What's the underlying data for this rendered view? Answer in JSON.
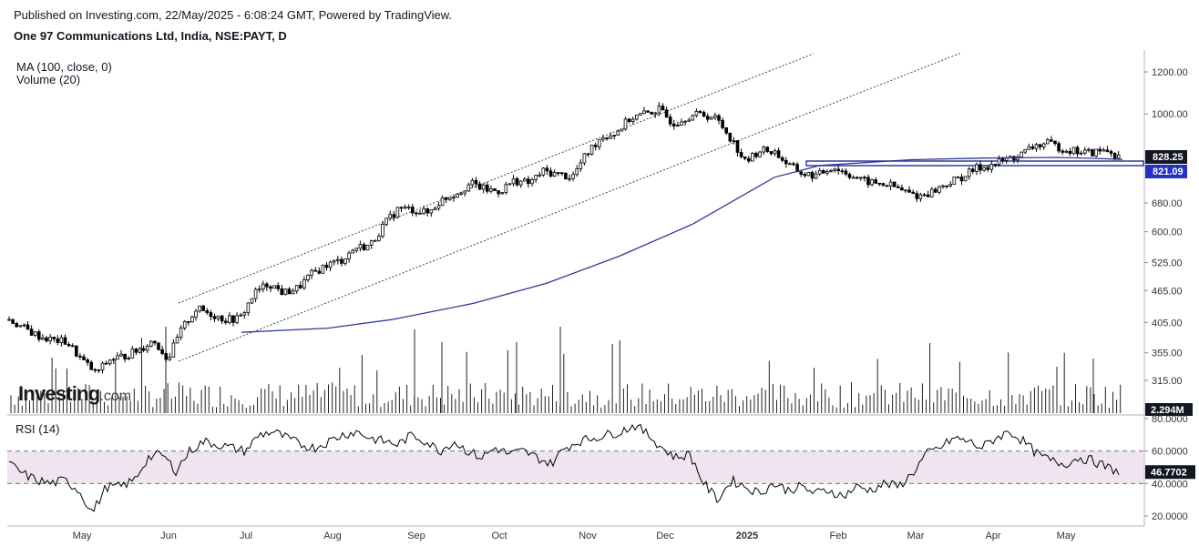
{
  "header": {
    "published": "Published on Investing.com, 22/May/2025 - 6:08:24 GMT, Powered by TradingView.",
    "title": "One 97 Communications Ltd, India, NSE:PAYT, D"
  },
  "indicators": {
    "ma_label": "MA (100, close, 0)",
    "volume_label": "Volume (20)",
    "rsi_label": "RSI (14)"
  },
  "logo": {
    "text": "Investing",
    "suffix": ".com"
  },
  "colors": {
    "candle": "#000000",
    "ma_line": "#2c3a9c",
    "channel": "#444444",
    "support_band": "#2c3a9c",
    "rsi_line": "#000000",
    "rsi_band": "#efe4f0",
    "last_price_badge": "#131722",
    "ma_badge": "#2431c4",
    "volume_badge": "#131722"
  },
  "chart_data": {
    "type": "candlestick",
    "symbol": "NSE:PAYT",
    "interval": "D",
    "price_axis": {
      "scale": "log",
      "ticks": [
        "1200.00",
        "1000.00",
        "828.25",
        "821.09",
        "680.00",
        "600.00",
        "525.00",
        "465.00",
        "405.00",
        "355.00",
        "315.00"
      ],
      "tick_values": [
        1200,
        1000,
        680,
        600,
        525,
        465,
        405,
        355,
        315
      ]
    },
    "time_axis": {
      "labels": [
        "May",
        "Jun",
        "Jul",
        "Aug",
        "Sep",
        "Oct",
        "Nov",
        "Dec",
        "2025",
        "Feb",
        "Mar",
        "Apr",
        "May"
      ],
      "bold": "2025"
    },
    "last_price": "828.25",
    "ma_value": "821.09",
    "volume_value": "2.294M",
    "rsi_value": "46.7702",
    "rsi_axis": {
      "ticks": [
        "80.0000",
        "60.0000",
        "40.0000",
        "20.0000"
      ],
      "values": [
        80,
        60,
        40,
        20
      ],
      "upper": 60,
      "lower": 40
    },
    "price_path": [
      [
        "May-2024",
        410
      ],
      [
        "May-2024",
        395
      ],
      [
        "May-2024",
        382
      ],
      [
        "May-2024",
        375
      ],
      [
        "May-2024",
        372
      ],
      [
        "May-2024",
        345
      ],
      [
        "May-2024",
        325
      ],
      [
        "May-2024",
        345
      ],
      [
        "Jun-2024",
        350
      ],
      [
        "Jun-2024",
        360
      ],
      [
        "Jun-2024",
        375
      ],
      [
        "Jun-2024",
        345
      ],
      [
        "Jun-2024",
        395
      ],
      [
        "Jun-2024",
        430
      ],
      [
        "Jul-2024",
        420
      ],
      [
        "Jul-2024",
        410
      ],
      [
        "Jul-2024",
        412
      ],
      [
        "Jul-2024",
        460
      ],
      [
        "Jul-2024",
        480
      ],
      [
        "Jul-2024",
        460
      ],
      [
        "Aug-2024",
        470
      ],
      [
        "Aug-2024",
        500
      ],
      [
        "Aug-2024",
        520
      ],
      [
        "Aug-2024",
        530
      ],
      [
        "Aug-2024",
        560
      ],
      [
        "Aug-2024",
        565
      ],
      [
        "Sep-2024",
        620
      ],
      [
        "Sep-2024",
        665
      ],
      [
        "Sep-2024",
        660
      ],
      [
        "Sep-2024",
        650
      ],
      [
        "Sep-2024",
        690
      ],
      [
        "Oct-2024",
        710
      ],
      [
        "Oct-2024",
        740
      ],
      [
        "Oct-2024",
        720
      ],
      [
        "Oct-2024",
        715
      ],
      [
        "Oct-2024",
        750
      ],
      [
        "Nov-2024",
        740
      ],
      [
        "Nov-2024",
        780
      ],
      [
        "Nov-2024",
        770
      ],
      [
        "Nov-2024",
        760
      ],
      [
        "Nov-2024",
        840
      ],
      [
        "Dec-2024",
        905
      ],
      [
        "Dec-2024",
        920
      ],
      [
        "Dec-2024",
        980
      ],
      [
        "Dec-2024",
        1000
      ],
      [
        "Dec-2024",
        1020
      ],
      [
        "Dec-2024",
        960
      ],
      [
        "Jan-2025",
        990
      ],
      [
        "Jan-2025",
        1000
      ],
      [
        "Jan-2025",
        980
      ],
      [
        "Jan-2025",
        900
      ],
      [
        "Jan-2025",
        810
      ],
      [
        "Jan-2025",
        855
      ],
      [
        "Jan-2025",
        850
      ],
      [
        "Jan-2025",
        800
      ],
      [
        "Feb-2025",
        770
      ],
      [
        "Feb-2025",
        765
      ],
      [
        "Feb-2025",
        795
      ],
      [
        "Feb-2025",
        775
      ],
      [
        "Feb-2025",
        750
      ],
      [
        "Feb-2025",
        740
      ],
      [
        "Mar-2025",
        735
      ],
      [
        "Mar-2025",
        715
      ],
      [
        "Mar-2025",
        700
      ],
      [
        "Mar-2025",
        715
      ],
      [
        "Mar-2025",
        740
      ],
      [
        "Mar-2025",
        760
      ],
      [
        "Apr-2025",
        790
      ],
      [
        "Apr-2025",
        800
      ],
      [
        "Apr-2025",
        820
      ],
      [
        "Apr-2025",
        835
      ],
      [
        "Apr-2025",
        870
      ],
      [
        "Apr-2025",
        880
      ],
      [
        "May-2025",
        860
      ],
      [
        "May-2025",
        850
      ],
      [
        "May-2025",
        845
      ],
      [
        "May-2025",
        855
      ],
      [
        "May-2025",
        828
      ]
    ],
    "ma_path": [
      [
        "Jul-2024",
        388
      ],
      [
        "Aug-2024",
        395
      ],
      [
        "Aug-2024",
        410
      ],
      [
        "Sep-2024",
        440
      ],
      [
        "Oct-2024",
        480
      ],
      [
        "Nov-2024",
        540
      ],
      [
        "Dec-2024",
        620
      ],
      [
        "Jan-2025",
        760
      ],
      [
        "Jan-2025",
        800
      ],
      [
        "Feb-2025",
        820
      ],
      [
        "Mar-2025",
        826
      ],
      [
        "Apr-2025",
        828
      ],
      [
        "May-2025",
        825
      ],
      [
        "May-2025",
        821
      ]
    ],
    "rsi_path": [
      52,
      46,
      42,
      40,
      42,
      36,
      22,
      38,
      38,
      42,
      56,
      58,
      48,
      60,
      66,
      64,
      62,
      60,
      70,
      72,
      68,
      64,
      62,
      66,
      70,
      72,
      68,
      66,
      64,
      70,
      66,
      60,
      66,
      60,
      56,
      62,
      58,
      60,
      56,
      52,
      62,
      66,
      68,
      70,
      72,
      76,
      70,
      62,
      56,
      58,
      40,
      30,
      42,
      38,
      34,
      40,
      36,
      38,
      34,
      36,
      32,
      38,
      36,
      40,
      38,
      46,
      58,
      62,
      68,
      66,
      62,
      68,
      72,
      66,
      58,
      54,
      52,
      56,
      54,
      50,
      47
    ]
  }
}
